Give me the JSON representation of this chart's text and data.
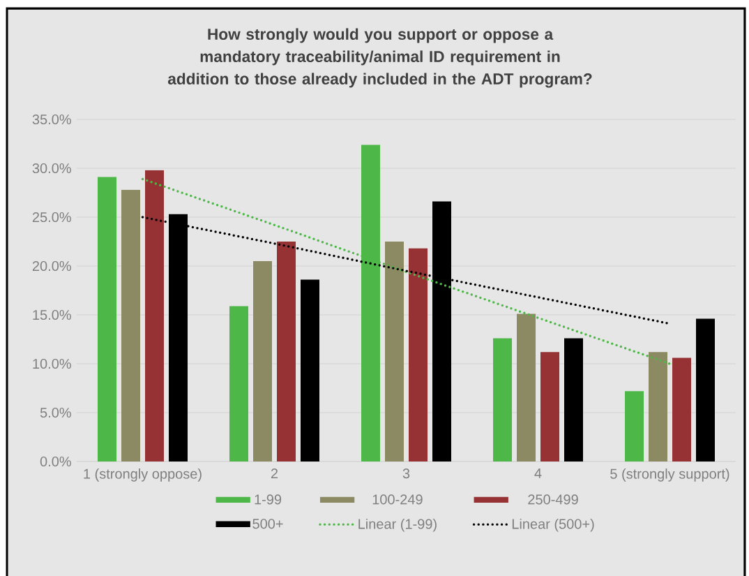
{
  "chart_data": {
    "type": "bar",
    "title": "How strongly would you support or oppose a mandatory traceability/animal ID requirement in addition to those already included in the ADT program?",
    "categories": [
      "1 (strongly oppose)",
      "2",
      "3",
      "4",
      "5 (strongly support)"
    ],
    "series": [
      {
        "name": "1-99",
        "color": "#4db848",
        "values": [
          29.1,
          15.9,
          32.4,
          12.6,
          7.2
        ]
      },
      {
        "name": "100-249",
        "color": "#8b8a62",
        "values": [
          27.8,
          20.5,
          22.5,
          15.1,
          11.2
        ]
      },
      {
        "name": "250-499",
        "color": "#963234",
        "values": [
          29.8,
          22.5,
          21.8,
          11.2,
          10.6
        ]
      },
      {
        "name": "500+",
        "color": "#000000",
        "values": [
          25.3,
          18.6,
          26.6,
          12.6,
          14.6
        ]
      },
      {
        "name": "Linear (1-99)",
        "type": "line",
        "line_style": "dotted",
        "color": "#4db848",
        "values": [
          28.9,
          24.2,
          19.4,
          14.7,
          10.0
        ]
      },
      {
        "name": "Linear (500+)",
        "type": "line",
        "line_style": "dotted",
        "color": "#000000",
        "values": [
          25.0,
          22.3,
          19.5,
          16.8,
          14.1
        ]
      }
    ],
    "ylim": [
      0,
      35
    ],
    "yticks": [
      {
        "value": 0,
        "label": "0.0%"
      },
      {
        "value": 5,
        "label": "5.0%"
      },
      {
        "value": 10,
        "label": "10.0%"
      },
      {
        "value": 15,
        "label": "15.0%"
      },
      {
        "value": 20,
        "label": "20.0%"
      },
      {
        "value": 25,
        "label": "25.0%"
      },
      {
        "value": 30,
        "label": "30.0%"
      },
      {
        "value": 35,
        "label": "35.0%"
      }
    ],
    "grid": "y",
    "legend": "bottom"
  }
}
